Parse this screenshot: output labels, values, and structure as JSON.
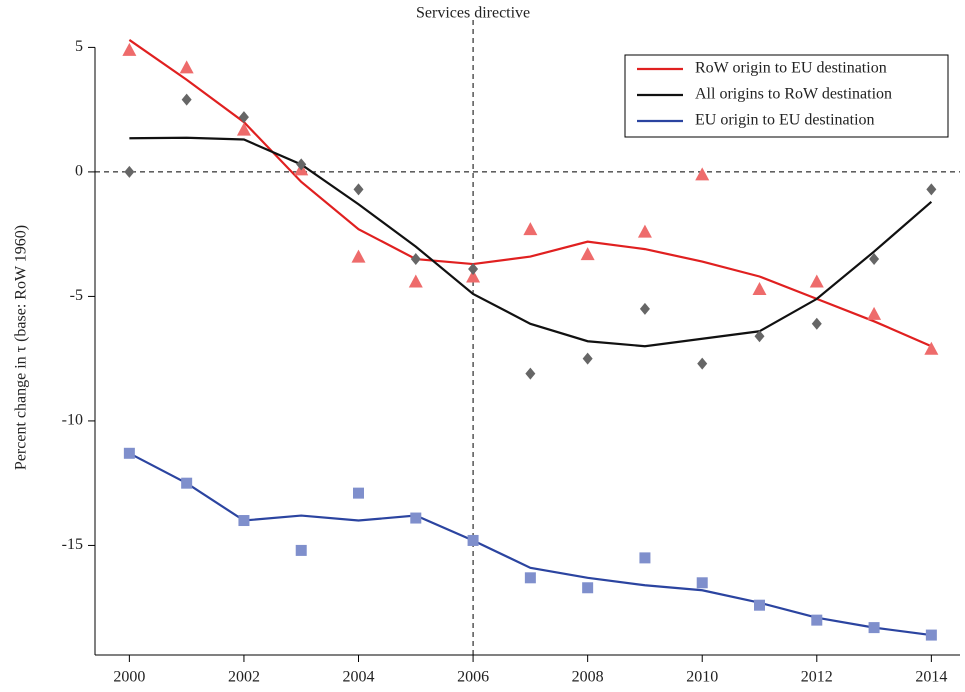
{
  "chart_data": {
    "type": "line",
    "y_label": "Percent change in τ (base: RoW 1960)",
    "xlim": [
      1999.4,
      2014.5
    ],
    "ylim": [
      -19.4,
      6.1
    ],
    "xticks": [
      2000,
      2002,
      2004,
      2006,
      2008,
      2010,
      2012,
      2014
    ],
    "yticks": [
      5,
      0,
      -5,
      -10,
      -15
    ],
    "yticks_labels_note": null,
    "x": [
      2000,
      2001,
      2002,
      2003,
      2004,
      2005,
      2006,
      2007,
      2008,
      2009,
      2010,
      2011,
      2012,
      2013,
      2014
    ],
    "vline": {
      "x": 2006,
      "label": "Services directive"
    },
    "hline": 0,
    "legend": "upper-right",
    "series": [
      {
        "name": "RoW origin to EU destination",
        "color": "#e02020",
        "marker": "triangle",
        "marker_color": "#ee6b6b",
        "values": [
          5.3,
          3.7,
          2.0,
          -0.4,
          -2.3,
          -3.5,
          -3.7,
          -3.4,
          -2.8,
          -3.1,
          -3.6,
          -4.2,
          -5.1,
          -6.0,
          -7.0
        ],
        "points": [
          4.9,
          4.2,
          1.7,
          0.1,
          -3.4,
          -4.4,
          -4.2,
          -2.3,
          -3.3,
          -2.4,
          -0.1,
          -4.7,
          -4.4,
          -5.7,
          -7.1
        ]
      },
      {
        "name": "All origins to RoW destination",
        "color": "#111111",
        "marker": "diamond",
        "marker_color": "#666666",
        "values": [
          1.35,
          1.37,
          1.3,
          0.3,
          -1.3,
          -3.0,
          -4.9,
          -6.1,
          -6.8,
          -7.0,
          -6.7,
          -6.4,
          -5.1,
          -3.2,
          -1.2
        ],
        "points": [
          0.0,
          2.9,
          2.2,
          0.3,
          -0.7,
          -3.5,
          -3.9,
          -8.1,
          -7.5,
          -5.5,
          -7.7,
          -6.6,
          -6.1,
          -3.5,
          -0.7
        ]
      },
      {
        "name": "EU origin to EU destination",
        "color": "#2b44a0",
        "marker": "square",
        "marker_color": "#7f8fcc",
        "values": [
          -11.3,
          -12.5,
          -14.0,
          -13.8,
          -14.0,
          -13.8,
          -14.8,
          -15.9,
          -16.3,
          -16.6,
          -16.8,
          -17.3,
          -17.9,
          -18.3,
          -18.6
        ],
        "points": [
          -11.3,
          -12.5,
          -14.0,
          -15.2,
          -12.9,
          -13.9,
          -14.8,
          -16.3,
          -16.7,
          -15.5,
          -16.5,
          -17.4,
          -18.0,
          -18.3,
          -18.6
        ]
      }
    ]
  }
}
